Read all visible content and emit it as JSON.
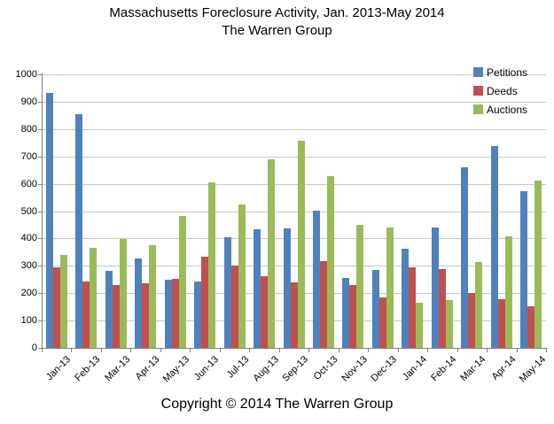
{
  "title": {
    "line1": "Massachusetts Foreclosure Activity, Jan. 2013-May 2014",
    "line2": "The Warren Group"
  },
  "footer": {
    "copyright": "Copyright © 2014 The Warren Group"
  },
  "chart_data": {
    "type": "bar",
    "title": "Massachusetts Foreclosure Activity, Jan. 2013-May 2014",
    "subtitle": "The Warren Group",
    "categories": [
      "Jan-13",
      "Feb-13",
      "Mar-13",
      "Apr-13",
      "May-13",
      "Jun-13",
      "Jul-13",
      "Aug-13",
      "Sep-13",
      "Oct-13",
      "Nov-13",
      "Dec-13",
      "Jan-14",
      "Feb-14",
      "Mar-14",
      "Apr-14",
      "May-14"
    ],
    "series": [
      {
        "name": "Petitions",
        "color": "#4F81BD",
        "values": [
          932,
          855,
          282,
          328,
          250,
          244,
          405,
          435,
          437,
          503,
          255,
          285,
          363,
          440,
          660,
          737,
          573
        ]
      },
      {
        "name": "Deeds",
        "color": "#C0504D",
        "values": [
          295,
          242,
          230,
          237,
          253,
          332,
          300,
          263,
          241,
          318,
          230,
          185,
          293,
          288,
          200,
          178,
          152
        ]
      },
      {
        "name": "Auctions",
        "color": "#9BBB59",
        "values": [
          340,
          365,
          398,
          375,
          482,
          606,
          524,
          690,
          758,
          629,
          449,
          439,
          166,
          174,
          314,
          409,
          612
        ]
      }
    ],
    "xlabel": "",
    "ylabel": "",
    "ylim": [
      0,
      1000
    ],
    "ytick_step": 100,
    "grid": true,
    "legend_position": "top-right",
    "colors": {
      "gridline": "#c8c8c8",
      "axis": "#808080",
      "background": "#ffffff",
      "text": "#000000"
    }
  }
}
